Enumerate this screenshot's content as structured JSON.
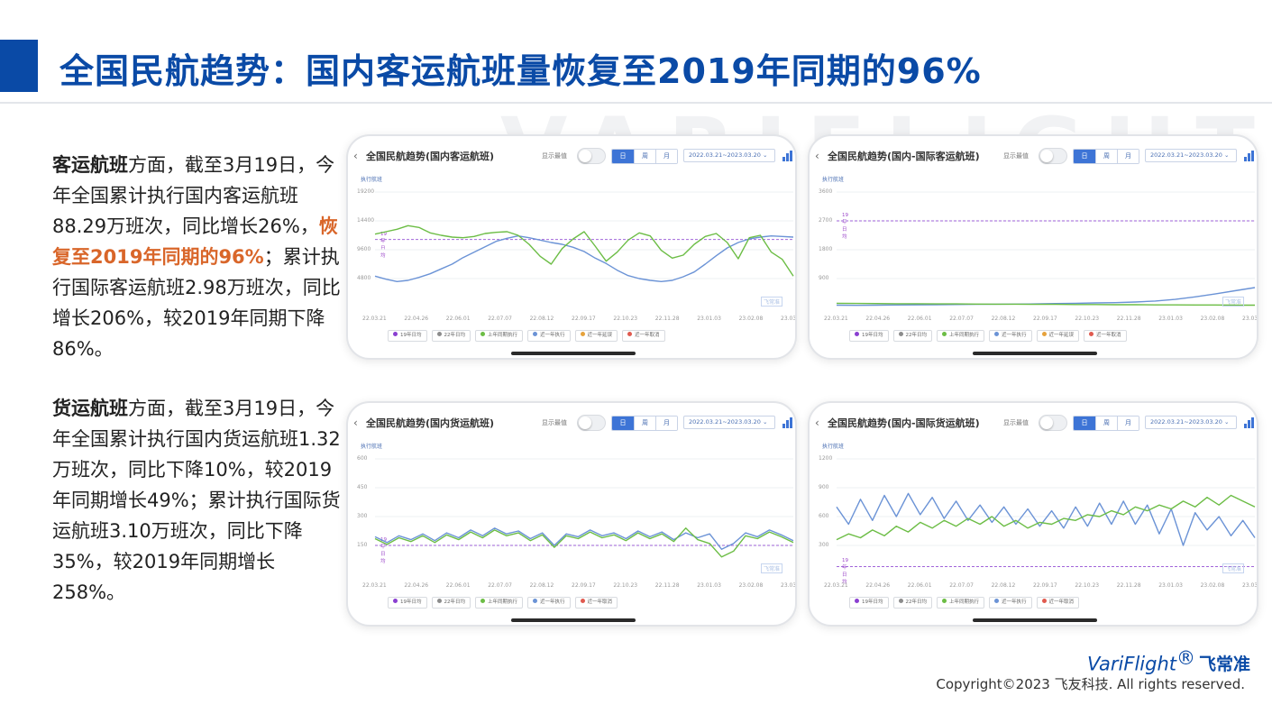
{
  "page": {
    "title": "全国民航趋势：国内客运航班量恢复至2019年同期的96%",
    "watermark": "VARIFLIGHT"
  },
  "paragraphs": [
    {
      "bold_lead": "客运航班",
      "text_a": "方面，截至3月19日，今年全国累计执行国内客运航班88.29万班次，同比增长26%，",
      "highlight": "恢复至2019年同期的96%",
      "text_b": "；累计执行国际客运航班2.98万班次，同比增长206%，较2019年同期下降86%。"
    },
    {
      "bold_lead": "货运航班",
      "text_a": "方面，截至3月19日，今年全国累计执行国内货运航班1.32万班次，同比下降10%，较2019年同期增长49%；累计执行国际货运航班3.10万班次，同比下降35%，较2019年同期增长258%。"
    }
  ],
  "chart_ui": {
    "show_max_label": "显示最值",
    "segments": [
      "日",
      "周",
      "月"
    ],
    "active_segment": "日",
    "date_range": "2022.03.21~2023.03.20",
    "y_unit": "执行航班",
    "ref_line_label": "19年日均",
    "chart_watermark": "飞常准",
    "colors": {
      "y2019": "#8a3fd1",
      "y2022": "#8c8c8c",
      "lastyear": "#6cbd45",
      "recent": "#6b93d6",
      "plan": "#e6a23c",
      "cancel": "#e05a4f"
    }
  },
  "chart_data": [
    {
      "type": "line",
      "title": "全国民航趋势(国内客运航班)",
      "x_ticks": [
        "22.03.21",
        "22.04.26",
        "22.06.01",
        "22.07.07",
        "22.08.12",
        "22.09.17",
        "22.10.23",
        "22.11.28",
        "23.01.03",
        "23.02.08",
        "23.03.1"
      ],
      "y_ticks": [
        4800,
        9600,
        14400,
        19200
      ],
      "ylim": [
        0,
        19200
      ],
      "reference_line": 11300,
      "legend": [
        "19年日均",
        "22年日均",
        "上年同期执行",
        "近一年执行",
        "近一年延误",
        "近一年取消"
      ],
      "series": [
        {
          "name": "近一年执行",
          "color_key": "recent",
          "values": [
            5200,
            4700,
            4300,
            4500,
            5000,
            5600,
            6400,
            7200,
            8300,
            9200,
            10100,
            11000,
            11500,
            11900,
            11600,
            11200,
            10800,
            10500,
            10000,
            9300,
            8200,
            7300,
            6200,
            5300,
            4800,
            4500,
            4300,
            4500,
            5100,
            5900,
            7200,
            8600,
            9900,
            10800,
            11400,
            11700,
            11900,
            11800,
            11700
          ]
        },
        {
          "name": "上年同期执行",
          "color_key": "lastyear",
          "values": [
            12200,
            12600,
            13000,
            13600,
            13300,
            12400,
            12000,
            11700,
            11600,
            11800,
            12300,
            12500,
            12600,
            12000,
            10500,
            8500,
            7200,
            9800,
            11400,
            12600,
            10200,
            7700,
            9200,
            11200,
            12400,
            11900,
            9500,
            8200,
            8700,
            10500,
            11800,
            12300,
            10800,
            8100,
            11600,
            12000,
            9200,
            8000,
            5200
          ]
        }
      ]
    },
    {
      "type": "line",
      "title": "全国民航趋势(国内-国际客运航班)",
      "x_ticks": [
        "22.03.21",
        "22.04.26",
        "22.06.01",
        "22.07.07",
        "22.08.12",
        "22.09.17",
        "22.10.23",
        "22.11.28",
        "23.01.03",
        "23.02.08",
        "23.03.1"
      ],
      "y_ticks": [
        900,
        1800,
        2700,
        3600
      ],
      "ylim": [
        0,
        3600
      ],
      "reference_line": 2700,
      "legend": [
        "19年日均",
        "22年日均",
        "上年同期执行",
        "近一年执行",
        "近一年延误",
        "近一年取消"
      ],
      "series": [
        {
          "name": "近一年执行",
          "color_key": "recent",
          "values": [
            70,
            65,
            70,
            75,
            80,
            85,
            90,
            95,
            100,
            105,
            110,
            120,
            130,
            140,
            150,
            170,
            200,
            250,
            330,
            420,
            520,
            620
          ]
        },
        {
          "name": "上年同期执行",
          "color_key": "lastyear",
          "values": [
            130,
            125,
            120,
            115,
            115,
            110,
            110,
            105,
            100,
            100,
            95,
            95,
            90,
            90,
            85,
            85,
            80,
            80,
            75,
            75,
            70,
            70
          ]
        }
      ]
    },
    {
      "type": "line",
      "title": "全国民航趋势(国内货运航班)",
      "x_ticks": [
        "22.03.21",
        "22.04.26",
        "22.06.01",
        "22.07.07",
        "22.08.12",
        "22.09.17",
        "22.10.23",
        "22.11.28",
        "23.01.03",
        "23.02.08",
        "23.03.1"
      ],
      "y_ticks": [
        150,
        300,
        450,
        600
      ],
      "ylim": [
        0,
        600
      ],
      "reference_line": 150,
      "legend": [
        "19年日均",
        "22年日均",
        "上年同期执行",
        "近一年执行",
        "近一年取消"
      ],
      "series": [
        {
          "name": "近一年执行",
          "color_key": "recent",
          "values": [
            195,
            165,
            200,
            180,
            210,
            175,
            215,
            190,
            230,
            200,
            240,
            210,
            225,
            185,
            215,
            150,
            210,
            195,
            230,
            200,
            215,
            185,
            225,
            195,
            220,
            180,
            215,
            190,
            210,
            130,
            160,
            215,
            195,
            230,
            205,
            175
          ]
        },
        {
          "name": "上年同期执行",
          "color_key": "lastyear",
          "values": [
            185,
            155,
            190,
            170,
            200,
            165,
            205,
            180,
            220,
            190,
            230,
            200,
            215,
            175,
            205,
            140,
            200,
            185,
            220,
            190,
            205,
            175,
            215,
            185,
            210,
            170,
            240,
            180,
            160,
            90,
            120,
            200,
            185,
            220,
            195,
            165
          ]
        }
      ]
    },
    {
      "type": "line",
      "title": "全国民航趋势(国内-国际货运航班)",
      "x_ticks": [
        "22.03.21",
        "22.04.26",
        "22.06.01",
        "22.07.07",
        "22.08.12",
        "22.09.17",
        "22.10.23",
        "22.11.28",
        "23.01.03",
        "23.02.08",
        "23.03.1"
      ],
      "y_ticks": [
        300,
        600,
        900,
        1200
      ],
      "ylim": [
        0,
        1200
      ],
      "reference_line": 80,
      "legend": [
        "19年日均",
        "22年日均",
        "上年同期执行",
        "近一年执行",
        "近一年取消"
      ],
      "series": [
        {
          "name": "近一年执行",
          "color_key": "recent",
          "values": [
            700,
            520,
            780,
            560,
            820,
            600,
            840,
            620,
            800,
            580,
            760,
            560,
            720,
            540,
            700,
            520,
            680,
            500,
            660,
            480,
            700,
            500,
            740,
            520,
            760,
            520,
            720,
            420,
            680,
            300,
            640,
            460,
            600,
            400,
            560,
            380
          ]
        },
        {
          "name": "上年同期执行",
          "color_key": "lastyear",
          "values": [
            360,
            420,
            380,
            460,
            400,
            500,
            440,
            540,
            480,
            560,
            500,
            580,
            520,
            600,
            500,
            560,
            480,
            540,
            520,
            580,
            560,
            620,
            600,
            660,
            620,
            700,
            660,
            720,
            680,
            760,
            700,
            800,
            720,
            820,
            760,
            700
          ]
        }
      ]
    }
  ],
  "footer": {
    "brand_en": "VariFlight",
    "brand_mark": "®",
    "brand_cn": "飞常准",
    "copyright": "Copyright©2023 飞友科技. All rights reserved."
  }
}
